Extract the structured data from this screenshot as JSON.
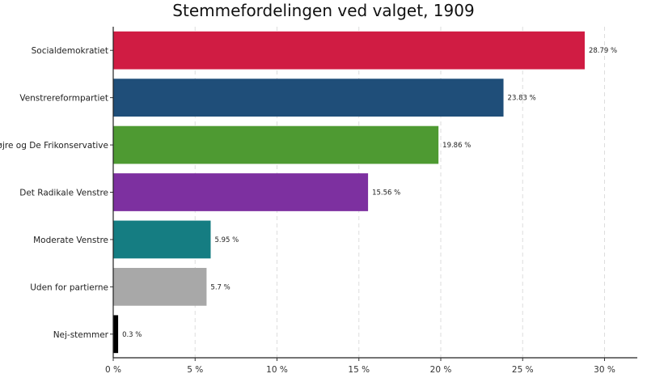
{
  "chart_data": {
    "type": "bar",
    "orientation": "horizontal",
    "title": "Stemmefordelingen ved valget, 1909",
    "xlabel": "",
    "ylabel": "",
    "xlim": [
      0,
      32
    ],
    "x_ticks": [
      0,
      5,
      10,
      15,
      20,
      25,
      30
    ],
    "x_tick_suffix": " %",
    "value_suffix": " %",
    "grid": "vertical dashed",
    "legend": "none",
    "categories": [
      "Socialdemokratiet",
      "Venstrereformpartiet",
      "Højre og De Frikonservative",
      "Det Radikale Venstre",
      "Moderate Venstre",
      "Uden for partierne",
      "Nej-stemmer"
    ],
    "values": [
      28.79,
      23.83,
      19.86,
      15.56,
      5.95,
      5.7,
      0.3
    ],
    "value_labels": [
      "28.79 %",
      "23.83 %",
      "19.86 %",
      "15.56 %",
      "5.95 %",
      "5.7 %",
      "0.3 %"
    ],
    "colors": [
      "#D01C43",
      "#1F4E79",
      "#4E9A32",
      "#7D30A0",
      "#157D82",
      "#A8A8A8",
      "#000000"
    ]
  }
}
